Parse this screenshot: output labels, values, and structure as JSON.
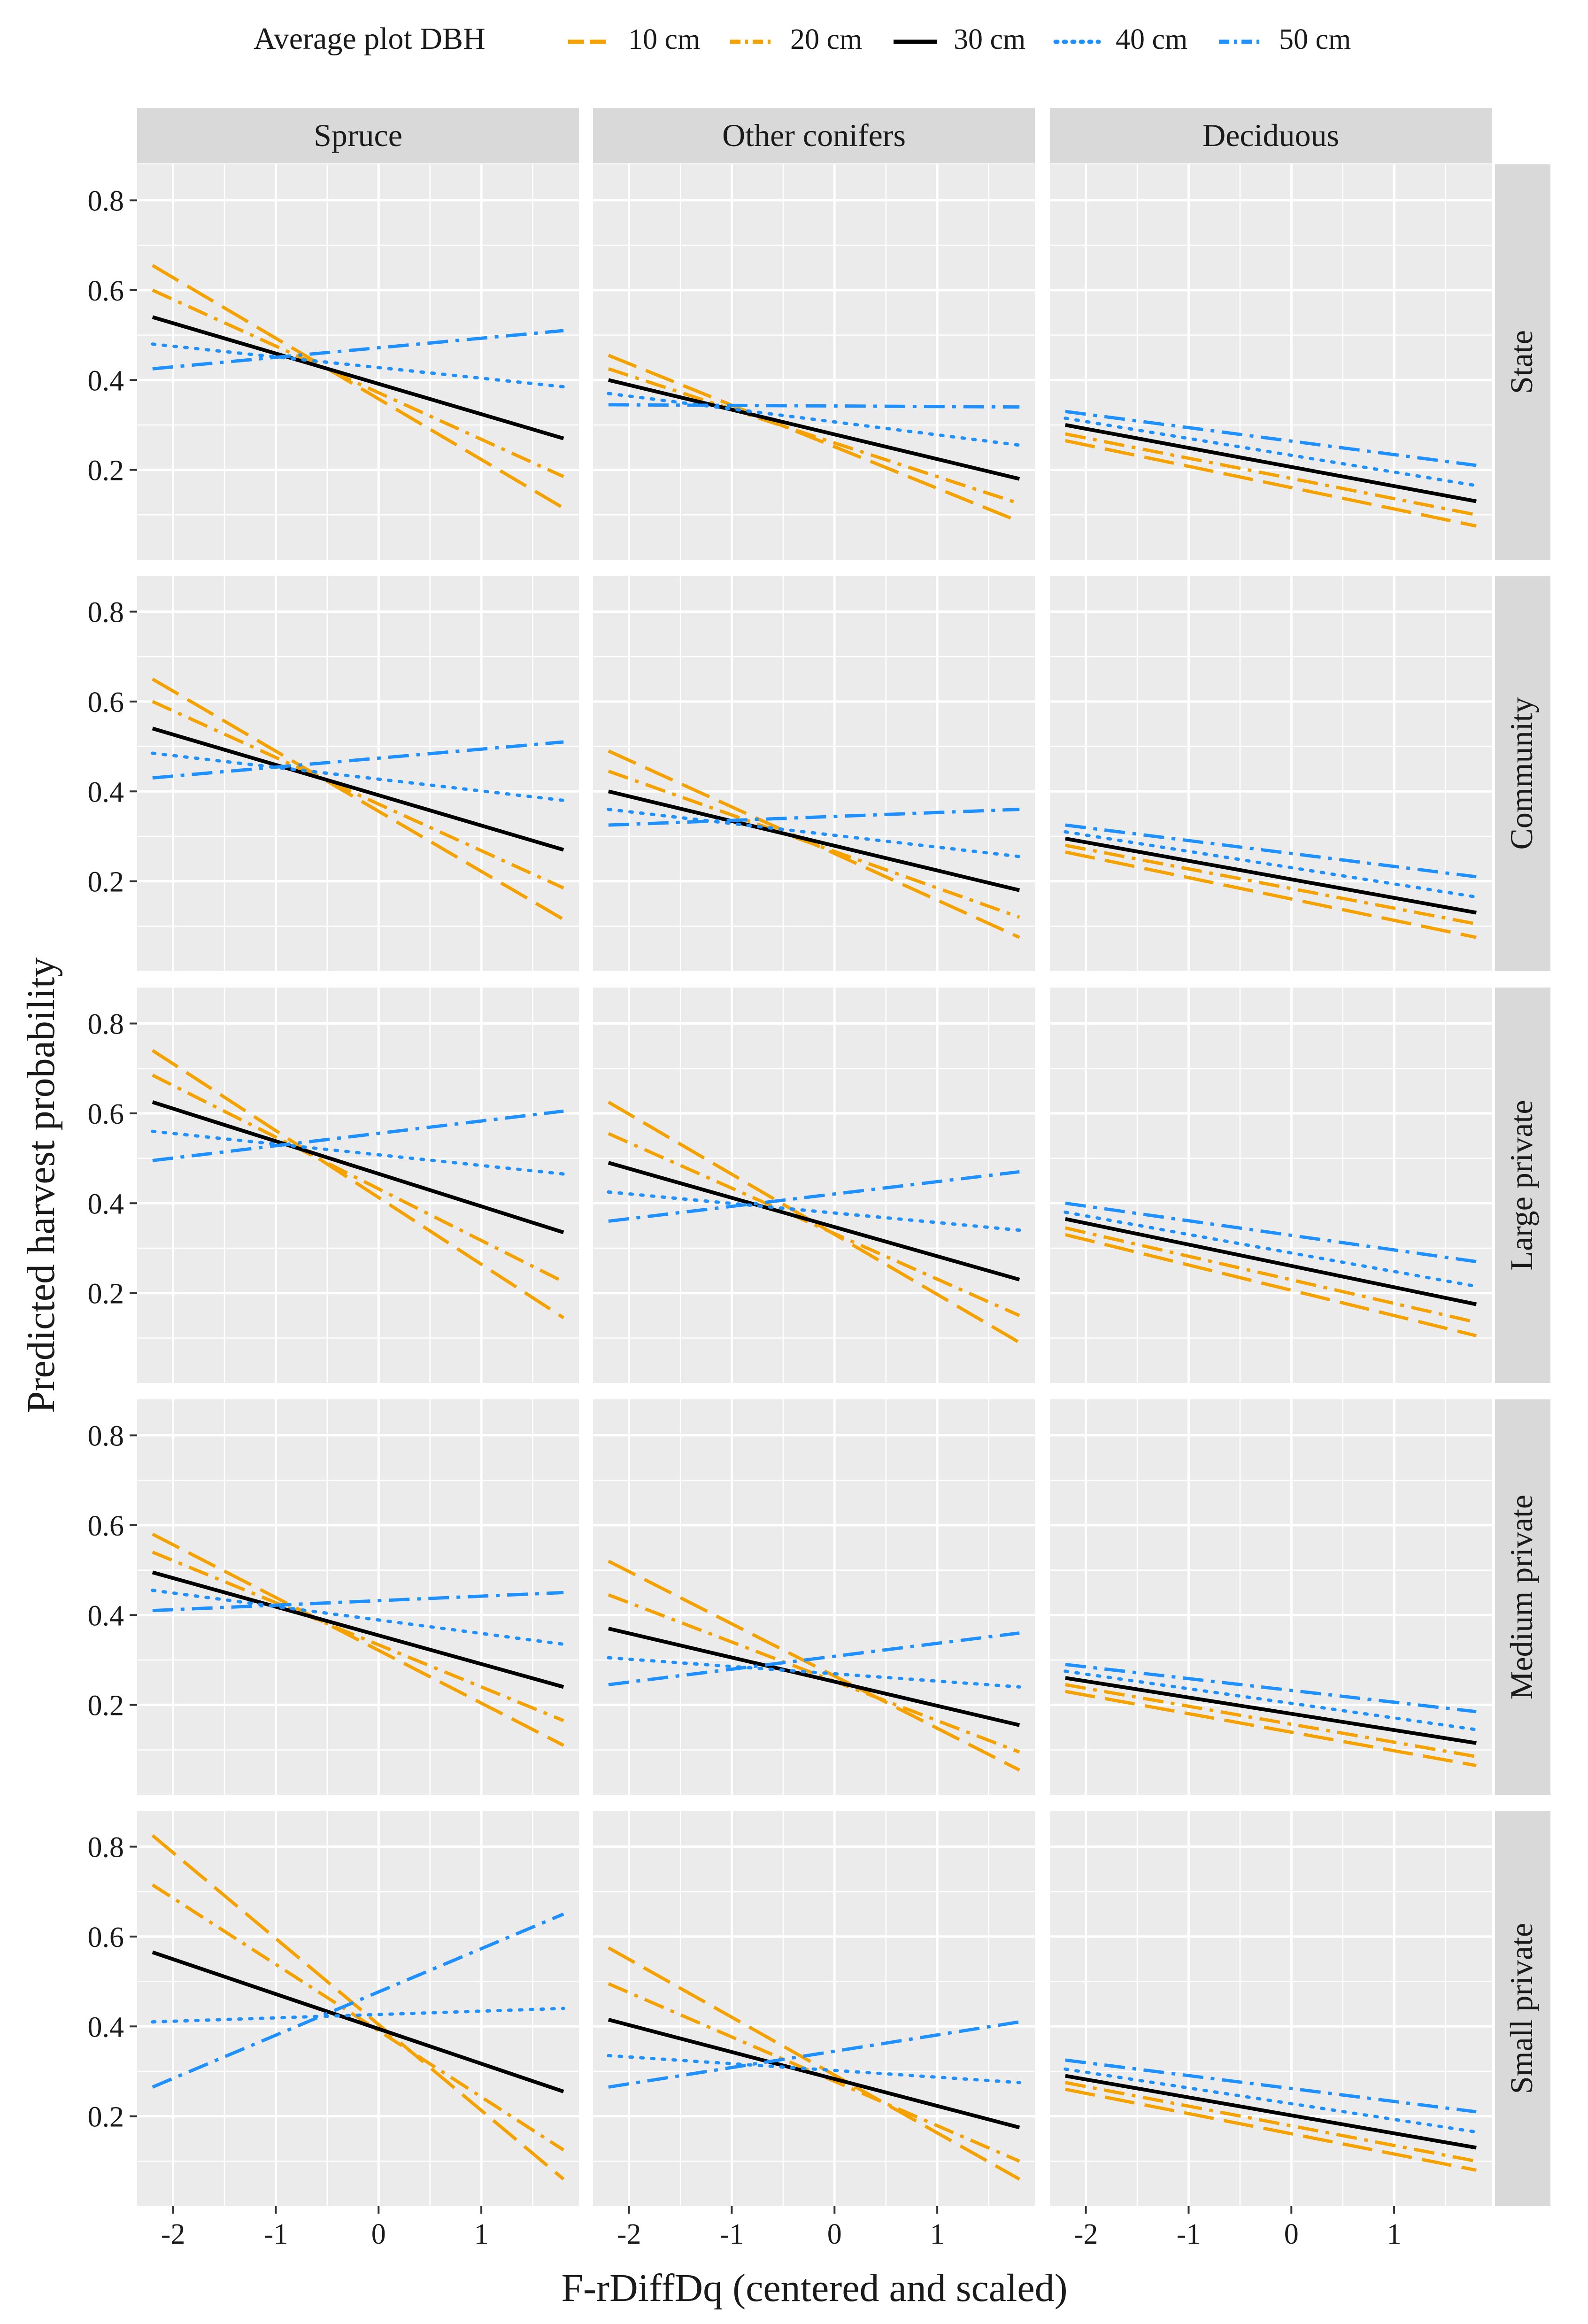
{
  "chart_data": {
    "type": "line",
    "facet_grid": true,
    "legend": {
      "title": "Average plot DBH",
      "position": "top",
      "entries": [
        {
          "label": "10 cm",
          "color": "#F5A200",
          "linetype": "longdash"
        },
        {
          "label": "20 cm",
          "color": "#F5A200",
          "linetype": "dashdot"
        },
        {
          "label": "30 cm",
          "color": "#000000",
          "linetype": "solid"
        },
        {
          "label": "40 cm",
          "color": "#1E90FF",
          "linetype": "dotted"
        },
        {
          "label": "50 cm",
          "color": "#1E90FF",
          "linetype": "dashdot"
        }
      ]
    },
    "xlabel": "F-rDiffDq (centered and scaled)",
    "ylabel": "Predicted harvest probability",
    "xlim": [
      -2.35,
      1.95
    ],
    "ylim": [
      0.0,
      0.88
    ],
    "xticks": [
      -2,
      -1,
      0,
      1
    ],
    "xtick_labels": [
      "-2",
      "-1",
      "0",
      "1"
    ],
    "yticks": [
      0.2,
      0.4,
      0.6,
      0.8
    ],
    "ytick_labels": [
      "0.2",
      "0.4",
      "0.6",
      "0.8"
    ],
    "x_range": [
      -2.2,
      1.8
    ],
    "columns": [
      "Spruce",
      "Other conifers",
      "Deciduous"
    ],
    "rows": [
      "State",
      "Community",
      "Large private",
      "Medium private",
      "Small private"
    ],
    "panels": [
      [
        {
          "series": [
            {
              "name": "10 cm",
              "start": 0.655,
              "end": 0.115
            },
            {
              "name": "20 cm",
              "start": 0.6,
              "end": 0.185
            },
            {
              "name": "30 cm",
              "start": 0.54,
              "end": 0.27
            },
            {
              "name": "40 cm",
              "start": 0.48,
              "end": 0.385
            },
            {
              "name": "50 cm",
              "start": 0.425,
              "end": 0.51
            }
          ]
        },
        {
          "series": [
            {
              "name": "10 cm",
              "start": 0.455,
              "end": 0.085
            },
            {
              "name": "20 cm",
              "start": 0.425,
              "end": 0.125
            },
            {
              "name": "30 cm",
              "start": 0.4,
              "end": 0.18
            },
            {
              "name": "40 cm",
              "start": 0.37,
              "end": 0.255
            },
            {
              "name": "50 cm",
              "start": 0.345,
              "end": 0.34
            }
          ]
        },
        {
          "series": [
            {
              "name": "10 cm",
              "start": 0.265,
              "end": 0.075
            },
            {
              "name": "20 cm",
              "start": 0.28,
              "end": 0.1
            },
            {
              "name": "30 cm",
              "start": 0.3,
              "end": 0.13
            },
            {
              "name": "40 cm",
              "start": 0.315,
              "end": 0.165
            },
            {
              "name": "50 cm",
              "start": 0.33,
              "end": 0.21
            }
          ]
        }
      ],
      [
        {
          "series": [
            {
              "name": "10 cm",
              "start": 0.65,
              "end": 0.115
            },
            {
              "name": "20 cm",
              "start": 0.6,
              "end": 0.185
            },
            {
              "name": "30 cm",
              "start": 0.54,
              "end": 0.27
            },
            {
              "name": "40 cm",
              "start": 0.485,
              "end": 0.38
            },
            {
              "name": "50 cm",
              "start": 0.43,
              "end": 0.51
            }
          ]
        },
        {
          "series": [
            {
              "name": "10 cm",
              "start": 0.49,
              "end": 0.075
            },
            {
              "name": "20 cm",
              "start": 0.445,
              "end": 0.12
            },
            {
              "name": "30 cm",
              "start": 0.4,
              "end": 0.18
            },
            {
              "name": "40 cm",
              "start": 0.36,
              "end": 0.255
            },
            {
              "name": "50 cm",
              "start": 0.325,
              "end": 0.36
            }
          ]
        },
        {
          "series": [
            {
              "name": "10 cm",
              "start": 0.265,
              "end": 0.075
            },
            {
              "name": "20 cm",
              "start": 0.28,
              "end": 0.105
            },
            {
              "name": "30 cm",
              "start": 0.295,
              "end": 0.13
            },
            {
              "name": "40 cm",
              "start": 0.31,
              "end": 0.165
            },
            {
              "name": "50 cm",
              "start": 0.325,
              "end": 0.21
            }
          ]
        }
      ],
      [
        {
          "series": [
            {
              "name": "10 cm",
              "start": 0.74,
              "end": 0.145
            },
            {
              "name": "20 cm",
              "start": 0.685,
              "end": 0.225
            },
            {
              "name": "30 cm",
              "start": 0.625,
              "end": 0.335
            },
            {
              "name": "40 cm",
              "start": 0.56,
              "end": 0.465
            },
            {
              "name": "50 cm",
              "start": 0.495,
              "end": 0.605
            }
          ]
        },
        {
          "series": [
            {
              "name": "10 cm",
              "start": 0.625,
              "end": 0.09
            },
            {
              "name": "20 cm",
              "start": 0.555,
              "end": 0.15
            },
            {
              "name": "30 cm",
              "start": 0.49,
              "end": 0.23
            },
            {
              "name": "40 cm",
              "start": 0.425,
              "end": 0.34
            },
            {
              "name": "50 cm",
              "start": 0.36,
              "end": 0.47
            }
          ]
        },
        {
          "series": [
            {
              "name": "10 cm",
              "start": 0.33,
              "end": 0.105
            },
            {
              "name": "20 cm",
              "start": 0.345,
              "end": 0.135
            },
            {
              "name": "30 cm",
              "start": 0.365,
              "end": 0.175
            },
            {
              "name": "40 cm",
              "start": 0.38,
              "end": 0.215
            },
            {
              "name": "50 cm",
              "start": 0.4,
              "end": 0.27
            }
          ]
        }
      ],
      [
        {
          "series": [
            {
              "name": "10 cm",
              "start": 0.58,
              "end": 0.11
            },
            {
              "name": "20 cm",
              "start": 0.54,
              "end": 0.165
            },
            {
              "name": "30 cm",
              "start": 0.495,
              "end": 0.24
            },
            {
              "name": "40 cm",
              "start": 0.455,
              "end": 0.335
            },
            {
              "name": "50 cm",
              "start": 0.41,
              "end": 0.45
            }
          ]
        },
        {
          "series": [
            {
              "name": "10 cm",
              "start": 0.52,
              "end": 0.055
            },
            {
              "name": "20 cm",
              "start": 0.445,
              "end": 0.095
            },
            {
              "name": "30 cm",
              "start": 0.37,
              "end": 0.155
            },
            {
              "name": "40 cm",
              "start": 0.305,
              "end": 0.24
            },
            {
              "name": "50 cm",
              "start": 0.245,
              "end": 0.36
            }
          ]
        },
        {
          "series": [
            {
              "name": "10 cm",
              "start": 0.23,
              "end": 0.065
            },
            {
              "name": "20 cm",
              "start": 0.245,
              "end": 0.085
            },
            {
              "name": "30 cm",
              "start": 0.26,
              "end": 0.115
            },
            {
              "name": "40 cm",
              "start": 0.275,
              "end": 0.145
            },
            {
              "name": "50 cm",
              "start": 0.29,
              "end": 0.185
            }
          ]
        }
      ],
      [
        {
          "series": [
            {
              "name": "10 cm",
              "start": 0.825,
              "end": 0.06
            },
            {
              "name": "20 cm",
              "start": 0.715,
              "end": 0.125
            },
            {
              "name": "30 cm",
              "start": 0.565,
              "end": 0.255
            },
            {
              "name": "40 cm",
              "start": 0.41,
              "end": 0.44
            },
            {
              "name": "50 cm",
              "start": 0.265,
              "end": 0.65
            }
          ]
        },
        {
          "series": [
            {
              "name": "10 cm",
              "start": 0.575,
              "end": 0.06
            },
            {
              "name": "20 cm",
              "start": 0.495,
              "end": 0.1
            },
            {
              "name": "30 cm",
              "start": 0.415,
              "end": 0.175
            },
            {
              "name": "40 cm",
              "start": 0.335,
              "end": 0.275
            },
            {
              "name": "50 cm",
              "start": 0.265,
              "end": 0.41
            }
          ]
        },
        {
          "series": [
            {
              "name": "10 cm",
              "start": 0.26,
              "end": 0.08
            },
            {
              "name": "20 cm",
              "start": 0.275,
              "end": 0.1
            },
            {
              "name": "30 cm",
              "start": 0.29,
              "end": 0.13
            },
            {
              "name": "40 cm",
              "start": 0.305,
              "end": 0.165
            },
            {
              "name": "50 cm",
              "start": 0.325,
              "end": 0.21
            }
          ]
        }
      ]
    ]
  }
}
